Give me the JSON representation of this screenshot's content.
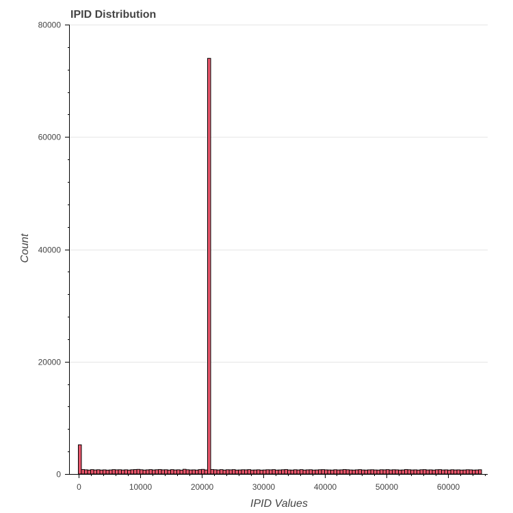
{
  "chart_data": {
    "type": "bar",
    "title": "IPID Distribution",
    "xlabel": "IPID Values",
    "ylabel": "Count",
    "xlim": [
      -1500,
      66500
    ],
    "ylim": [
      0,
      80000
    ],
    "x_ticks": [
      0,
      10000,
      20000,
      30000,
      40000,
      50000,
      60000
    ],
    "y_ticks": [
      0,
      20000,
      40000,
      60000,
      80000
    ],
    "grid": true,
    "bin_width": 500,
    "bin_starts": [
      0,
      500,
      1000,
      1500,
      2000,
      2500,
      3000,
      3500,
      4000,
      4500,
      5000,
      5500,
      6000,
      6500,
      7000,
      7500,
      8000,
      8500,
      9000,
      9500,
      10000,
      10500,
      11000,
      11500,
      12000,
      12500,
      13000,
      13500,
      14000,
      14500,
      15000,
      15500,
      16000,
      16500,
      17000,
      17500,
      18000,
      18500,
      19000,
      19500,
      20000,
      20500,
      21000,
      21500,
      22000,
      22500,
      23000,
      23500,
      24000,
      24500,
      25000,
      25500,
      26000,
      26500,
      27000,
      27500,
      28000,
      28500,
      29000,
      29500,
      30000,
      30500,
      31000,
      31500,
      32000,
      32500,
      33000,
      33500,
      34000,
      34500,
      35000,
      35500,
      36000,
      36500,
      37000,
      37500,
      38000,
      38500,
      39000,
      39500,
      40000,
      40500,
      41000,
      41500,
      42000,
      42500,
      43000,
      43500,
      44000,
      44500,
      45000,
      45500,
      46000,
      46500,
      47000,
      47500,
      48000,
      48500,
      49000,
      49500,
      50000,
      50500,
      51000,
      51500,
      52000,
      52500,
      53000,
      53500,
      54000,
      54500,
      55000,
      55500,
      56000,
      56500,
      57000,
      57500,
      58000,
      58500,
      59000,
      59500,
      60000,
      60500,
      61000,
      61500,
      62000,
      62500,
      63000,
      63500,
      64000,
      64500,
      65000
    ],
    "values": [
      5200,
      800,
      750,
      700,
      780,
      720,
      760,
      700,
      740,
      690,
      720,
      780,
      740,
      760,
      710,
      750,
      700,
      760,
      790,
      820,
      760,
      700,
      740,
      780,
      720,
      760,
      800,
      740,
      760,
      700,
      780,
      720,
      750,
      690,
      840,
      760,
      720,
      740,
      700,
      780,
      820,
      720,
      74000,
      800,
      760,
      720,
      780,
      700,
      760,
      740,
      780,
      700,
      720,
      760,
      740,
      780,
      700,
      720,
      750,
      690,
      720,
      760,
      740,
      780,
      700,
      720,
      760,
      800,
      720,
      700,
      760,
      720,
      780,
      700,
      740,
      760,
      700,
      720,
      760,
      780,
      740,
      720,
      700,
      760,
      720,
      740,
      800,
      760,
      720,
      700,
      740,
      780,
      720,
      700,
      740,
      760,
      720,
      700,
      760,
      740,
      780,
      720,
      760,
      740,
      700,
      720,
      800,
      760,
      720,
      740,
      700,
      760,
      780,
      720,
      740,
      700,
      760,
      780,
      720,
      740,
      700,
      760,
      720,
      740,
      700,
      720,
      760,
      740,
      700,
      720,
      760
    ]
  }
}
